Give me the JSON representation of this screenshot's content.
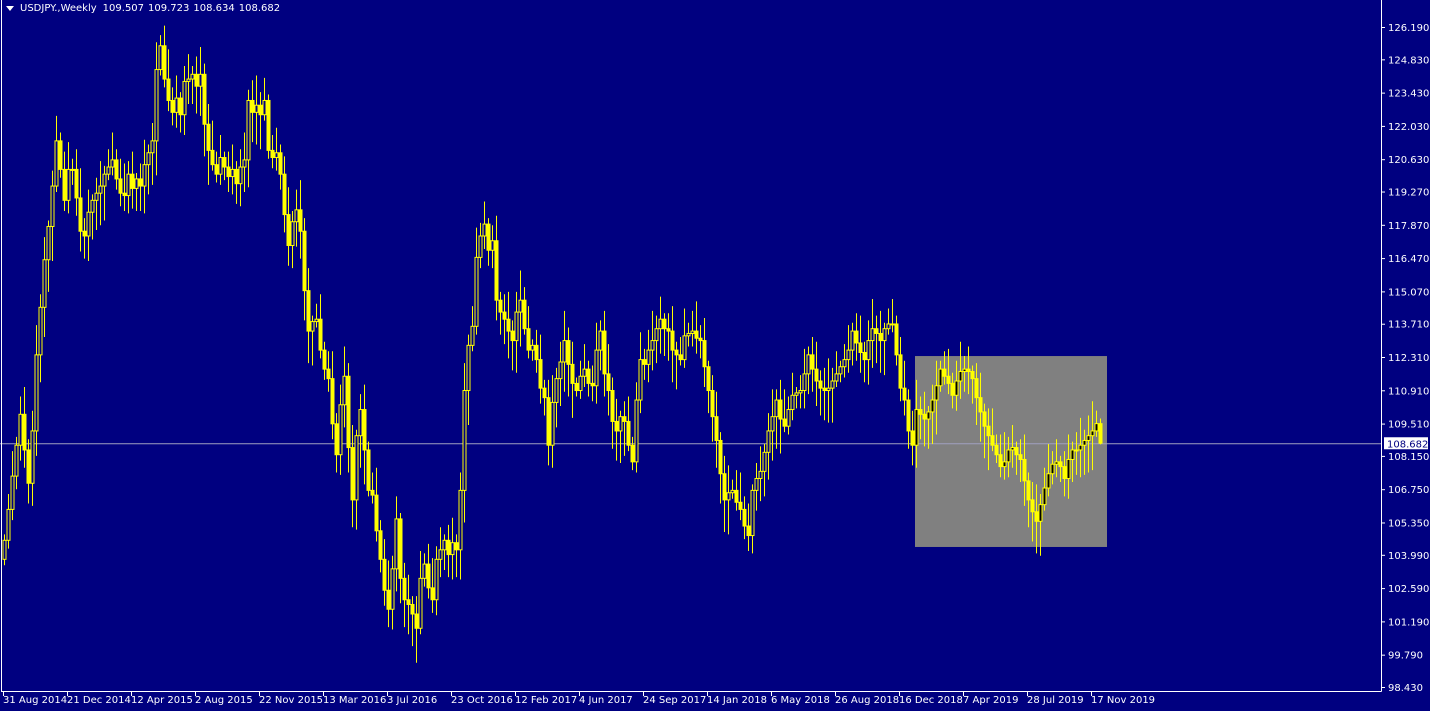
{
  "header": {
    "symbol": "USDJPY.",
    "timeframe": "Weekly",
    "open": "109.507",
    "high": "109.723",
    "low": "108.634",
    "close": "108.682"
  },
  "colors": {
    "background": "#000080",
    "candle": "#ffff00",
    "axis": "#ffffff",
    "price_line": "#a0a0c0",
    "rectangle": "#808080"
  },
  "chart_data": {
    "type": "candlestick",
    "title": "USDJPY.,Weekly",
    "ylim": [
      98.43,
      126.19
    ],
    "y_ticks": [
      "126.190",
      "124.830",
      "123.430",
      "122.030",
      "120.630",
      "119.270",
      "117.870",
      "116.470",
      "115.070",
      "113.710",
      "112.310",
      "110.910",
      "109.510",
      "108.150",
      "106.750",
      "105.350",
      "103.990",
      "102.590",
      "101.190",
      "99.790",
      "98.430"
    ],
    "x_ticks": [
      "31 Aug 2014",
      "21 Dec 2014",
      "12 Apr 2015",
      "2 Aug 2015",
      "22 Nov 2015",
      "13 Mar 2016",
      "3 Jul 2016",
      "23 Oct 2016",
      "12 Feb 2017",
      "4 Jun 2017",
      "24 Sep 2017",
      "14 Jan 2018",
      "6 May 2018",
      "26 Aug 2018",
      "16 Dec 2018",
      "7 Apr 2019",
      "28 Jul 2019",
      "17 Nov 2019"
    ],
    "first_week": "31 Aug 2014",
    "current_price": "108.682",
    "weekly_closes": [
      104.6,
      105.9,
      107.3,
      108.6,
      109.9,
      108.4,
      107.0,
      109.2,
      112.4,
      114.4,
      116.4,
      117.8,
      119.5,
      121.4,
      120.2,
      118.9,
      120.2,
      120.2,
      119.0,
      117.6,
      117.4,
      118.4,
      118.9,
      119.2,
      119.5,
      120.0,
      120.3,
      120.6,
      119.8,
      119.2,
      119.1,
      120.0,
      119.4,
      119.8,
      119.5,
      120.4,
      120.9,
      121.4,
      124.4,
      125.4,
      124.0,
      123.1,
      122.6,
      123.2,
      122.5,
      123.9,
      124.0,
      124.2,
      123.7,
      124.2,
      122.1,
      121.0,
      120.4,
      120.0,
      120.7,
      120.3,
      119.9,
      120.2,
      119.6,
      120.3,
      120.6,
      123.1,
      122.6,
      122.9,
      122.5,
      123.1,
      121.0,
      120.7,
      120.9,
      120.0,
      118.3,
      117.0,
      118.0,
      118.5,
      117.6,
      115.1,
      113.4,
      113.8,
      113.9,
      112.6,
      111.8,
      111.4,
      109.5,
      108.2,
      110.3,
      111.5,
      108.5,
      106.3,
      109.0,
      110.1,
      108.4,
      106.7,
      106.5,
      105.0,
      103.8,
      102.5,
      101.7,
      103.4,
      105.5,
      103.0,
      102.1,
      101.9,
      101.5,
      100.9,
      103.0,
      103.6,
      102.6,
      102.1,
      103.8,
      104.2,
      104.6,
      104.0,
      104.5,
      104.2,
      106.7,
      110.9,
      112.8,
      113.6,
      116.5,
      117.4,
      117.9,
      116.8,
      117.2,
      114.7,
      114.2,
      113.9,
      113.4,
      113.0,
      114.2,
      114.7,
      113.5,
      112.6,
      112.8,
      112.2,
      111.0,
      110.6,
      108.6,
      110.4,
      111.4,
      112.1,
      113.0,
      112.0,
      111.2,
      110.9,
      111.5,
      111.8,
      111.2,
      111.1,
      112.6,
      113.4,
      111.6,
      110.9,
      109.6,
      109.2,
      109.8,
      109.6,
      108.6,
      107.9,
      110.5,
      112.2,
      112.0,
      112.6,
      113.0,
      113.5,
      113.9,
      113.5,
      113.4,
      112.6,
      112.4,
      112.2,
      113.2,
      113.3,
      113.4,
      113.1,
      113.0,
      111.9,
      110.9,
      109.8,
      108.8,
      107.4,
      106.3,
      106.6,
      106.7,
      106.2,
      105.9,
      105.2,
      104.8,
      106.7,
      107.2,
      107.5,
      108.3,
      109.2,
      109.8,
      110.5,
      109.7,
      109.4,
      110.1,
      110.7,
      110.8,
      110.9,
      111.6,
      112.4,
      111.8,
      111.3,
      111.0,
      110.9,
      111.0,
      111.3,
      111.6,
      111.9,
      112.2,
      112.6,
      113.4,
      112.9,
      112.5,
      112.2,
      113.0,
      113.5,
      113.3,
      113.0,
      113.5,
      113.7,
      113.7,
      112.4,
      111.0,
      110.5,
      109.2,
      108.6,
      110.1,
      109.9,
      109.7,
      110.0,
      110.5,
      111.1,
      111.8,
      111.5,
      111.2,
      110.7,
      111.3,
      111.7,
      111.8,
      111.7,
      111.4,
      110.6,
      110.0,
      109.4,
      109.0,
      108.6,
      108.2,
      107.7,
      107.9,
      108.4,
      108.5,
      108.2,
      108.0,
      107.1,
      106.3,
      105.8,
      105.4,
      106.1,
      106.8,
      107.4,
      107.8,
      107.9,
      107.7,
      107.2,
      108.0,
      108.4,
      108.4,
      108.6,
      108.8,
      109.0,
      109.2,
      109.507,
      108.682
    ],
    "rectangle": {
      "price_top": 112.35,
      "price_bottom": 104.32,
      "from": "13 Jan 2019",
      "to": "15 Dec 2019"
    },
    "grid": false
  }
}
